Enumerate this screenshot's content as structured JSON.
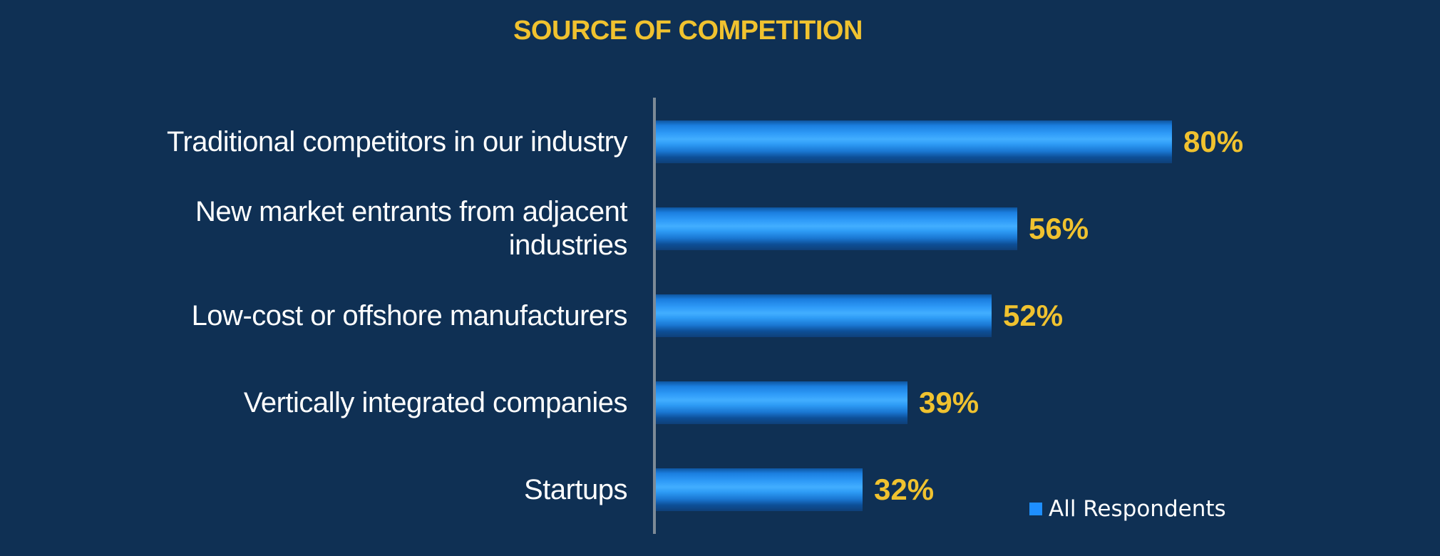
{
  "page": {
    "background_color": "#0f3054"
  },
  "header": {
    "title": "SOURCE OF COMPETITION",
    "title_color": "#f0c22f"
  },
  "legend": {
    "label": "All Respondents",
    "marker_color": "#1e8fff"
  },
  "chart_data": {
    "type": "bar",
    "orientation": "horizontal",
    "title": "SOURCE OF COMPETITION",
    "categories": [
      "Traditional competitors in our industry",
      "New market entrants from adjacent\nindustries",
      "Low-cost or offshore manufacturers",
      "Vertically integrated companies",
      "Startups"
    ],
    "series": [
      {
        "name": "All Respondents",
        "values": [
          80,
          56,
          52,
          39,
          32
        ]
      }
    ],
    "value_labels": [
      "80%",
      "56%",
      "52%",
      "39%",
      "32%"
    ],
    "value_suffix": "%",
    "xlim": [
      0,
      100
    ],
    "grid": false,
    "legend_position": "bottom-right",
    "bar_color": "#1e8fff",
    "value_label_color": "#f0c22f",
    "category_label_color": "#ffffff",
    "axis_line_color": "#7d8a96"
  }
}
